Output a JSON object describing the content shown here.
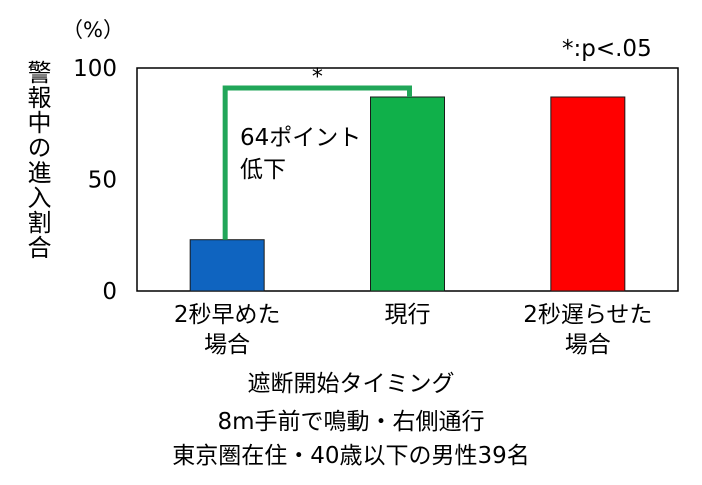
{
  "chart_data": {
    "type": "bar",
    "categories": [
      {
        "line1": "2秒早めた",
        "line2": "場合"
      },
      {
        "line1": "現行",
        "line2": ""
      },
      {
        "line1": "2秒遅らせた",
        "line2": "場合"
      }
    ],
    "values": [
      23,
      87,
      87
    ],
    "colors": [
      "#0f64c0",
      "#10b04a",
      "#ff0000"
    ],
    "ylabel": "警報中の進入割合",
    "unit": "（%）",
    "ylim": [
      0,
      100
    ],
    "yticks": [
      0,
      50,
      100
    ],
    "xlabel": "遮断開始タイミング",
    "conditions": [
      "8m手前で鳴動・右側通行",
      "東京圏在住・40歳以下の男性39名"
    ],
    "significance_note": "*:p<.05",
    "bracket": {
      "from_category": 0,
      "to_category": 1,
      "marker": "*",
      "color": "#21a659"
    },
    "annotation": {
      "line1": "64ポイント",
      "line2": "低下"
    }
  }
}
